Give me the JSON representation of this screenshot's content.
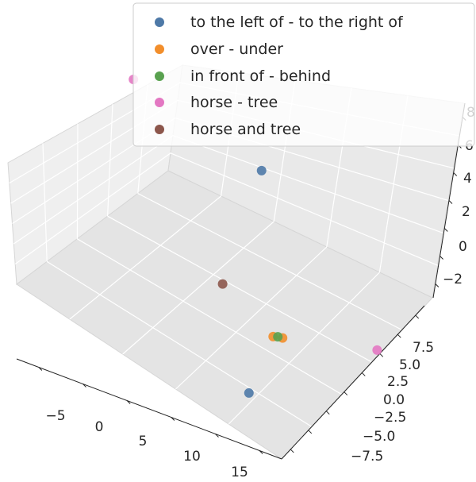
{
  "chart_data": {
    "type": "scatter",
    "projection": "3d",
    "grid": true,
    "legend_position": "top-right",
    "axes": {
      "x": {
        "ticks": [
          "−5",
          "0",
          "5",
          "10",
          "15"
        ]
      },
      "y": {
        "ticks": [
          "−7.5",
          "−5.0",
          "−2.5",
          "0.0",
          "2.5",
          "5.0",
          "7.5"
        ]
      },
      "z": {
        "ticks": [
          "−2",
          "0",
          "2",
          "4",
          "6",
          "8"
        ]
      }
    },
    "series": [
      {
        "name": "to the left of - to the right of",
        "color": "#4e79a7",
        "points": [
          {
            "x": 12,
            "y": -6,
            "z": -1
          },
          {
            "x": 2,
            "y": 7,
            "z": 6
          }
        ]
      },
      {
        "name": "over - under",
        "color": "#f28e2b",
        "points": [
          {
            "x": 10,
            "y": -1,
            "z": 0
          },
          {
            "x": 11,
            "y": -1,
            "z": 0.5
          }
        ]
      },
      {
        "name": "in front of - behind",
        "color": "#59a14f",
        "points": [
          {
            "x": 10.5,
            "y": -1,
            "z": 0.3
          }
        ]
      },
      {
        "name": "horse - tree",
        "color": "#e377c2",
        "points": [
          {
            "x": -10,
            "y": 6,
            "z": 8
          },
          {
            "x": 17,
            "y": 3,
            "z": 0.5
          }
        ]
      },
      {
        "name": "horse and tree",
        "color": "#8c564b",
        "points": [
          {
            "x": 5,
            "y": -1,
            "z": 2
          }
        ]
      }
    ]
  }
}
